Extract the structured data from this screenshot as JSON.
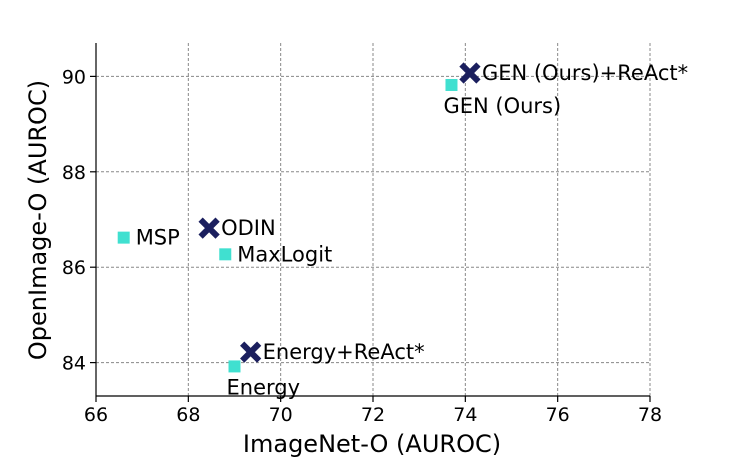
{
  "chart_data": {
    "type": "scatter",
    "xlabel": "ImageNet-O (AUROC)",
    "ylabel": "OpenImage-O (AUROC)",
    "xlim": [
      66,
      78
    ],
    "ylim": [
      83.3,
      90.7
    ],
    "xticks": [
      66,
      68,
      70,
      72,
      74,
      76,
      78
    ],
    "yticks": [
      84,
      86,
      88,
      90
    ],
    "grid": true,
    "colors": {
      "square": "#40e0d0",
      "cross": "#1b1f5e"
    },
    "points": [
      {
        "label": "MSP",
        "x": 66.6,
        "y": 86.62,
        "marker": "square",
        "label_anchor": "right"
      },
      {
        "label": "ODIN",
        "x": 68.45,
        "y": 86.82,
        "marker": "cross",
        "label_anchor": "right"
      },
      {
        "label": "MaxLogit",
        "x": 68.8,
        "y": 86.27,
        "marker": "square",
        "label_anchor": "right"
      },
      {
        "label": "Energy",
        "x": 69.0,
        "y": 83.92,
        "marker": "square",
        "label_anchor": "below"
      },
      {
        "label": "Energy+ReAct*",
        "x": 69.35,
        "y": 84.22,
        "marker": "cross",
        "label_anchor": "right"
      },
      {
        "label": "GEN (Ours)",
        "x": 73.7,
        "y": 89.82,
        "marker": "square",
        "label_anchor": "below"
      },
      {
        "label": "GEN (Ours)+ReAct*",
        "x": 74.1,
        "y": 90.07,
        "marker": "cross",
        "label_anchor": "right"
      }
    ]
  }
}
